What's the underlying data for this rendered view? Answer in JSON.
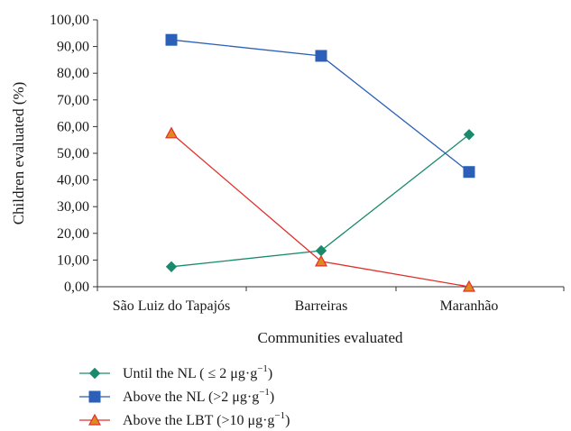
{
  "chart_data": {
    "type": "line",
    "categories": [
      "São Luiz do Tapajós",
      "Barreiras",
      "Maranhão"
    ],
    "xlabel": "Communities evaluated",
    "ylabel": "Children evaluated (%)",
    "ylim": [
      0,
      100
    ],
    "yticks": [
      "0,00",
      "10,00",
      "20,00",
      "30,00",
      "40,00",
      "50,00",
      "60,00",
      "70,00",
      "80,00",
      "90,00",
      "100,00"
    ],
    "grid": false,
    "legend_position": "bottom-left",
    "series": [
      {
        "name": "Until the NL",
        "name_detail": "( ≤ 2 μg·g",
        "name_close": ")",
        "values": [
          7.5,
          13.5,
          57.0
        ],
        "color": "#1a8a6c",
        "marker": "diamond"
      },
      {
        "name": "Above the NL",
        "name_detail": "(>2 μg·g",
        "name_close": ")",
        "values": [
          92.5,
          86.5,
          43.0
        ],
        "color": "#2b5fb8",
        "marker": "square"
      },
      {
        "name": "Above the LBT",
        "name_detail": "(>10 μg·g",
        "name_close": ")",
        "values": [
          57.5,
          9.5,
          0.0
        ],
        "color": "#e0302a",
        "marker": "triangle"
      }
    ],
    "superscript": "−1",
    "marker_fill_triangle": "#e08a1e"
  }
}
